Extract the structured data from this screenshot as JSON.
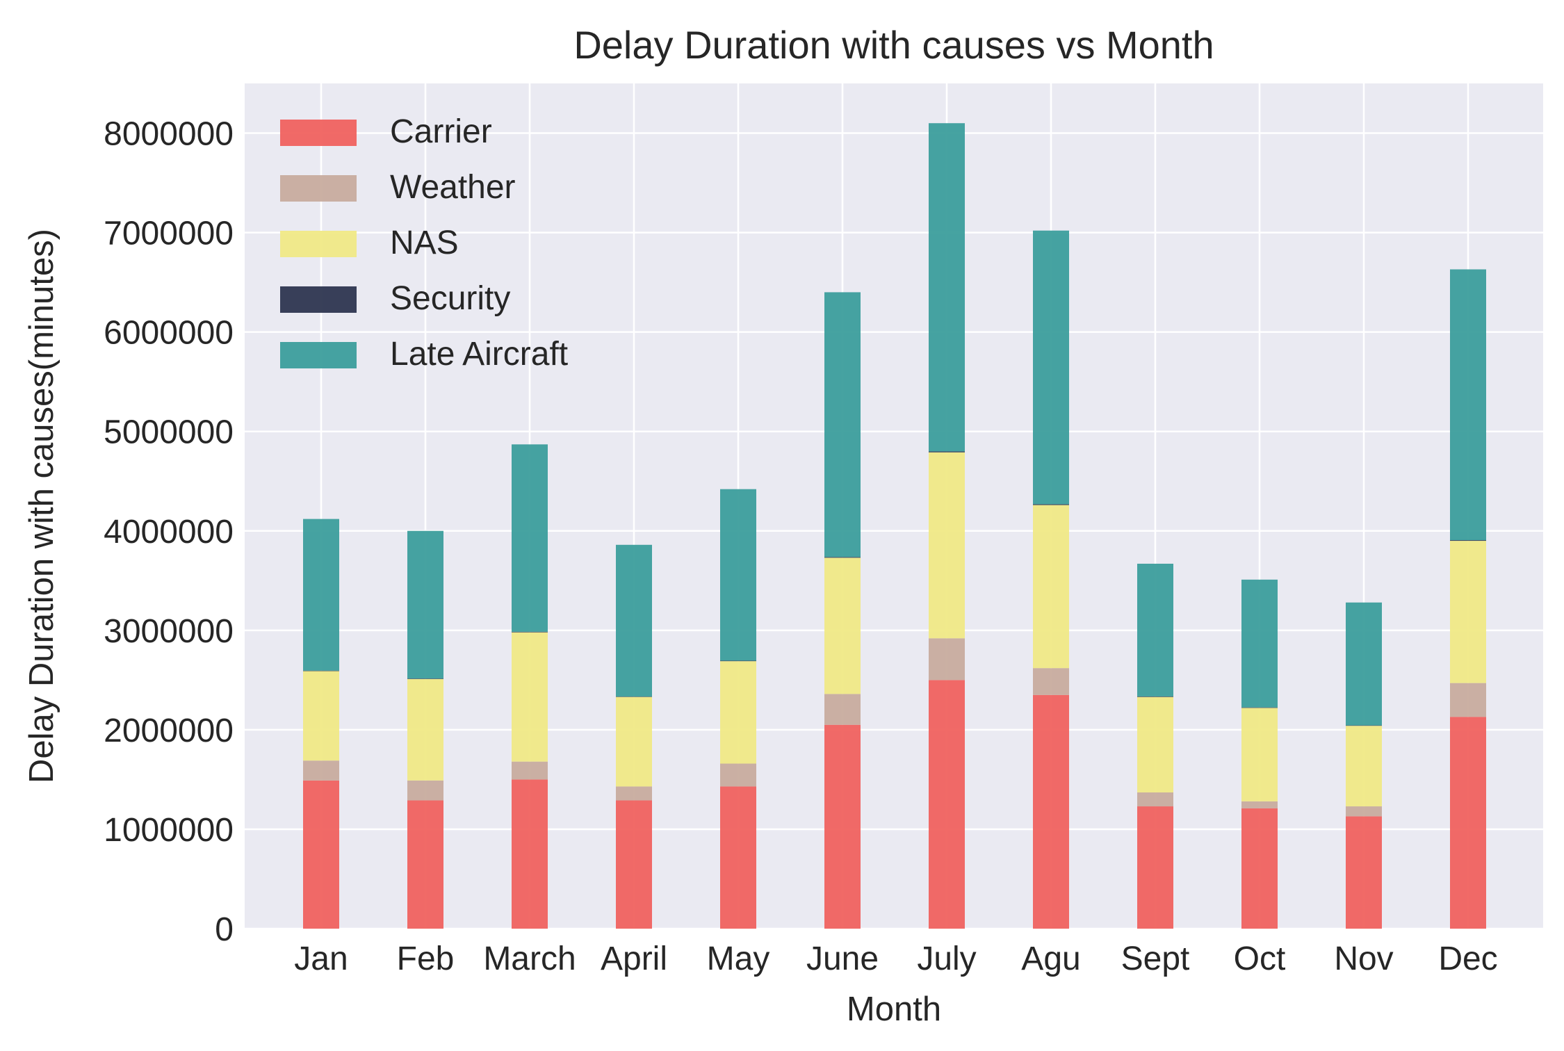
{
  "chart_data": {
    "type": "bar",
    "stacked": true,
    "title": "Delay Duration with causes vs Month",
    "xlabel": "Month",
    "ylabel": "Delay Duration with causes(minutes)",
    "categories": [
      "Jan",
      "Feb",
      "March",
      "April",
      "May",
      "June",
      "July",
      "Agu",
      "Sept",
      "Oct",
      "Nov",
      "Dec"
    ],
    "ylim": [
      0,
      8500000
    ],
    "yticks": [
      0,
      1000000,
      2000000,
      3000000,
      4000000,
      5000000,
      6000000,
      7000000,
      8000000
    ],
    "ytick_labels": [
      "0",
      "1000000",
      "2000000",
      "3000000",
      "4000000",
      "5000000",
      "6000000",
      "7000000",
      "8000000"
    ],
    "grid": true,
    "legend_position": "top-left",
    "series": [
      {
        "name": "Carrier",
        "color": "#f0625f",
        "values": [
          1490000,
          1290000,
          1500000,
          1290000,
          1430000,
          2050000,
          2500000,
          2350000,
          1230000,
          1210000,
          1130000,
          2130000
        ]
      },
      {
        "name": "Weather",
        "color": "#c8ac9e",
        "values": [
          200000,
          200000,
          180000,
          140000,
          230000,
          310000,
          420000,
          270000,
          140000,
          70000,
          100000,
          340000
        ]
      },
      {
        "name": "NAS",
        "color": "#f0e986",
        "values": [
          900000,
          1020000,
          1300000,
          900000,
          1030000,
          1370000,
          1870000,
          1640000,
          960000,
          940000,
          810000,
          1430000
        ]
      },
      {
        "name": "Security",
        "color": "#2e3650",
        "values": [
          5000,
          5000,
          6000,
          4000,
          5000,
          7000,
          9000,
          8000,
          5000,
          5000,
          4000,
          7000
        ]
      },
      {
        "name": "Late Aircraft",
        "color": "#3c9e9c",
        "values": [
          1525000,
          1485000,
          1884000,
          1526000,
          1725000,
          2663000,
          3301000,
          2752000,
          1335000,
          1285000,
          1236000,
          2723000
        ]
      }
    ]
  }
}
